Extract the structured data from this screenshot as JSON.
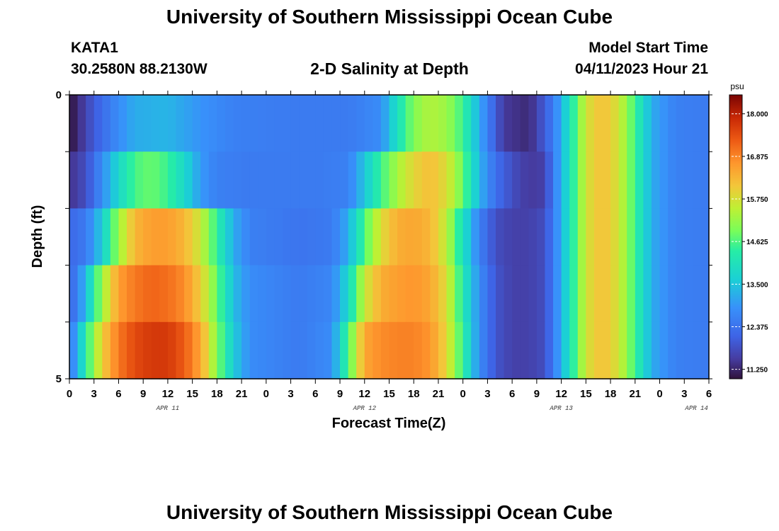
{
  "header": {
    "title_top": "University of Southern Mississippi Ocean Cube",
    "station": "KATA1",
    "coords": "30.2580N  88.2130W",
    "plot_title": "2-D Salinity at Depth",
    "model_start_label": "Model Start Time",
    "model_start_value": "04/11/2023 Hour 21",
    "title_bottom": "University of Southern Mississippi Ocean Cube"
  },
  "chart_data": {
    "type": "heatmap",
    "title": "2-D Salinity at Depth",
    "xlabel": "Forecast Time(Z)",
    "ylabel": "Depth (ft)",
    "y_tick_labels": [
      "0",
      "5"
    ],
    "ylim": [
      0,
      5
    ],
    "x_tick_labels": [
      "0",
      "3",
      "6",
      "9",
      "12",
      "15",
      "18",
      "21",
      "0",
      "3",
      "6",
      "9",
      "12",
      "15",
      "18",
      "21",
      "0",
      "3",
      "6",
      "9",
      "12",
      "15",
      "18",
      "21",
      "0",
      "3",
      "6"
    ],
    "date_labels": [
      "APR 11",
      "APR 12",
      "APR 13",
      "APR 14"
    ],
    "colorbar": {
      "unit": "psu",
      "min": 11.0,
      "max": 18.5,
      "tick_labels": [
        "18.000",
        "16.875",
        "15.750",
        "14.625",
        "13.500",
        "12.375",
        "11.250"
      ],
      "tick_values": [
        18.0,
        16.875,
        15.75,
        14.625,
        13.5,
        12.375,
        11.25
      ]
    },
    "depth_layers": 5,
    "hours": 78,
    "layers": [
      {
        "depth_index": 0,
        "points": [
          [
            0,
            11.0
          ],
          [
            1,
            11.3
          ],
          [
            3,
            12.0
          ],
          [
            6,
            12.8
          ],
          [
            8,
            13.2
          ],
          [
            12,
            13.3
          ],
          [
            16,
            12.9
          ],
          [
            20,
            12.6
          ],
          [
            28,
            12.5
          ],
          [
            34,
            12.5
          ],
          [
            38,
            12.8
          ],
          [
            40,
            14.0
          ],
          [
            42,
            15.0
          ],
          [
            44,
            15.4
          ],
          [
            46,
            15.2
          ],
          [
            48,
            14.5
          ],
          [
            50,
            13.2
          ],
          [
            52,
            12.0
          ],
          [
            53,
            11.5
          ],
          [
            56,
            11.3
          ],
          [
            57,
            11.6
          ],
          [
            59,
            12.5
          ],
          [
            61,
            14.0
          ],
          [
            63,
            15.7
          ],
          [
            65,
            16.2
          ],
          [
            67,
            15.7
          ],
          [
            69,
            14.5
          ],
          [
            71,
            13.2
          ],
          [
            74,
            12.6
          ],
          [
            78,
            12.5
          ]
        ]
      },
      {
        "depth_index": 1,
        "points": [
          [
            0,
            11.4
          ],
          [
            2,
            11.8
          ],
          [
            4,
            12.8
          ],
          [
            6,
            13.8
          ],
          [
            8,
            14.6
          ],
          [
            10,
            14.8
          ],
          [
            12,
            14.5
          ],
          [
            14,
            13.8
          ],
          [
            16,
            13.0
          ],
          [
            18,
            12.6
          ],
          [
            22,
            12.5
          ],
          [
            30,
            12.5
          ],
          [
            34,
            12.6
          ],
          [
            36,
            13.5
          ],
          [
            38,
            14.5
          ],
          [
            40,
            15.3
          ],
          [
            42,
            15.9
          ],
          [
            44,
            16.2
          ],
          [
            46,
            15.8
          ],
          [
            48,
            14.8
          ],
          [
            50,
            13.3
          ],
          [
            52,
            12.3
          ],
          [
            54,
            11.8
          ],
          [
            56,
            11.5
          ],
          [
            58,
            11.6
          ],
          [
            59,
            12.5
          ],
          [
            61,
            14.0
          ],
          [
            63,
            15.7
          ],
          [
            65,
            16.2
          ],
          [
            67,
            15.7
          ],
          [
            69,
            14.5
          ],
          [
            71,
            13.2
          ],
          [
            74,
            12.6
          ],
          [
            78,
            12.5
          ]
        ]
      },
      {
        "depth_index": 2,
        "points": [
          [
            0,
            12.2
          ],
          [
            2,
            12.5
          ],
          [
            4,
            13.6
          ],
          [
            6,
            15.2
          ],
          [
            8,
            16.3
          ],
          [
            10,
            16.6
          ],
          [
            12,
            16.6
          ],
          [
            14,
            16.3
          ],
          [
            16,
            15.6
          ],
          [
            18,
            14.4
          ],
          [
            20,
            13.2
          ],
          [
            22,
            12.6
          ],
          [
            28,
            12.4
          ],
          [
            32,
            12.5
          ],
          [
            34,
            13.2
          ],
          [
            36,
            14.6
          ],
          [
            38,
            15.8
          ],
          [
            40,
            16.4
          ],
          [
            42,
            16.5
          ],
          [
            44,
            16.3
          ],
          [
            46,
            15.5
          ],
          [
            48,
            14.0
          ],
          [
            50,
            12.6
          ],
          [
            52,
            11.8
          ],
          [
            54,
            11.6
          ],
          [
            56,
            11.6
          ],
          [
            58,
            11.8
          ],
          [
            59,
            12.5
          ],
          [
            61,
            14.0
          ],
          [
            63,
            15.7
          ],
          [
            65,
            16.2
          ],
          [
            67,
            15.7
          ],
          [
            69,
            14.5
          ],
          [
            71,
            13.2
          ],
          [
            74,
            12.6
          ],
          [
            78,
            12.5
          ]
        ]
      },
      {
        "depth_index": 3,
        "points": [
          [
            0,
            12.2
          ],
          [
            1,
            12.6
          ],
          [
            2,
            13.4
          ],
          [
            4,
            15.2
          ],
          [
            6,
            16.6
          ],
          [
            8,
            17.0
          ],
          [
            10,
            17.2
          ],
          [
            12,
            17.1
          ],
          [
            14,
            16.8
          ],
          [
            16,
            16.0
          ],
          [
            18,
            14.8
          ],
          [
            20,
            13.4
          ],
          [
            22,
            12.8
          ],
          [
            28,
            12.5
          ],
          [
            32,
            12.7
          ],
          [
            34,
            13.8
          ],
          [
            36,
            15.6
          ],
          [
            38,
            16.4
          ],
          [
            40,
            16.6
          ],
          [
            42,
            16.7
          ],
          [
            44,
            16.5
          ],
          [
            46,
            15.8
          ],
          [
            48,
            14.2
          ],
          [
            50,
            12.8
          ],
          [
            52,
            11.9
          ],
          [
            54,
            11.6
          ],
          [
            56,
            11.6
          ],
          [
            58,
            11.8
          ],
          [
            59,
            12.5
          ],
          [
            61,
            14.0
          ],
          [
            63,
            15.7
          ],
          [
            65,
            16.2
          ],
          [
            67,
            15.7
          ],
          [
            69,
            14.5
          ],
          [
            71,
            13.2
          ],
          [
            74,
            12.6
          ],
          [
            78,
            12.5
          ]
        ]
      },
      {
        "depth_index": 4,
        "points": [
          [
            0,
            12.5
          ],
          [
            1,
            13.2
          ],
          [
            2,
            14.3
          ],
          [
            4,
            16.0
          ],
          [
            6,
            17.0
          ],
          [
            8,
            17.5
          ],
          [
            10,
            17.7
          ],
          [
            12,
            17.7
          ],
          [
            14,
            17.3
          ],
          [
            16,
            16.5
          ],
          [
            18,
            15.0
          ],
          [
            20,
            13.6
          ],
          [
            22,
            12.8
          ],
          [
            28,
            12.5
          ],
          [
            32,
            12.8
          ],
          [
            34,
            14.6
          ],
          [
            36,
            16.5
          ],
          [
            38,
            16.8
          ],
          [
            40,
            16.9
          ],
          [
            42,
            16.9
          ],
          [
            44,
            16.7
          ],
          [
            46,
            15.9
          ],
          [
            48,
            14.4
          ],
          [
            50,
            12.8
          ],
          [
            52,
            11.9
          ],
          [
            54,
            11.6
          ],
          [
            56,
            11.6
          ],
          [
            58,
            11.8
          ],
          [
            59,
            12.5
          ],
          [
            61,
            14.0
          ],
          [
            63,
            15.7
          ],
          [
            65,
            16.2
          ],
          [
            67,
            15.7
          ],
          [
            69,
            14.5
          ],
          [
            71,
            13.2
          ],
          [
            74,
            12.6
          ],
          [
            78,
            12.5
          ]
        ]
      }
    ]
  }
}
